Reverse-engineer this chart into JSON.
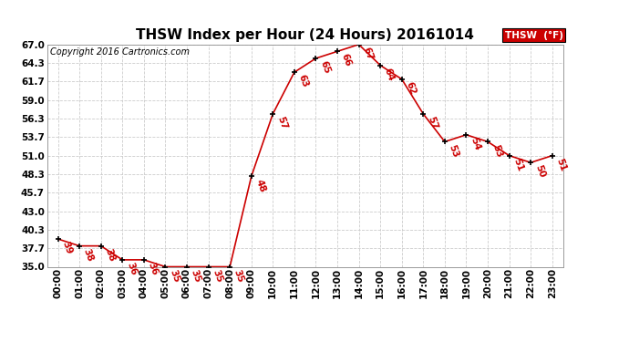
{
  "title": "THSW Index per Hour (24 Hours) 20161014",
  "copyright": "Copyright 2016 Cartronics.com",
  "legend_label": "THSW  (°F)",
  "hours": [
    0,
    1,
    2,
    3,
    4,
    5,
    6,
    7,
    8,
    9,
    10,
    11,
    12,
    13,
    14,
    15,
    16,
    17,
    18,
    19,
    20,
    21,
    22,
    23
  ],
  "values": [
    39,
    38,
    38,
    36,
    36,
    35,
    35,
    35,
    35,
    48,
    57,
    63,
    65,
    66,
    67,
    64,
    62,
    57,
    53,
    54,
    53,
    51,
    50,
    51
  ],
  "ylim": [
    35.0,
    67.0
  ],
  "yticks": [
    35.0,
    37.7,
    40.3,
    43.0,
    45.7,
    48.3,
    51.0,
    53.7,
    56.3,
    59.0,
    61.7,
    64.3,
    67.0
  ],
  "ytick_labels": [
    "35.0",
    "37.7",
    "40.3",
    "43.0",
    "45.7",
    "48.3",
    "51.0",
    "53.7",
    "56.3",
    "59.0",
    "61.7",
    "64.3",
    "67.0"
  ],
  "line_color": "#cc0000",
  "marker_color": "#000000",
  "background_color": "#ffffff",
  "grid_color": "#cccccc",
  "title_fontsize": 11,
  "label_fontsize": 7.5,
  "annotation_fontsize": 7.5,
  "copyright_fontsize": 7,
  "legend_bg": "#cc0000",
  "legend_text_color": "#ffffff"
}
